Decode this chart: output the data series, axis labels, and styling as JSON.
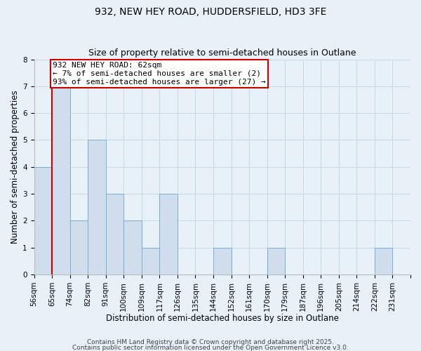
{
  "title": "932, NEW HEY ROAD, HUDDERSFIELD, HD3 3FE",
  "subtitle": "Size of property relative to semi-detached houses in Outlane",
  "xlabel": "Distribution of semi-detached houses by size in Outlane",
  "ylabel": "Number of semi-detached properties",
  "bin_labels": [
    "56sqm",
    "65sqm",
    "74sqm",
    "82sqm",
    "91sqm",
    "100sqm",
    "109sqm",
    "117sqm",
    "126sqm",
    "135sqm",
    "144sqm",
    "152sqm",
    "161sqm",
    "170sqm",
    "179sqm",
    "187sqm",
    "196sqm",
    "205sqm",
    "214sqm",
    "222sqm",
    "231sqm"
  ],
  "bin_values": [
    4,
    7,
    2,
    5,
    3,
    2,
    1,
    3,
    0,
    0,
    1,
    0,
    0,
    1,
    0,
    0,
    0,
    0,
    0,
    1,
    0
  ],
  "ylim": [
    0,
    8
  ],
  "yticks": [
    0,
    1,
    2,
    3,
    4,
    5,
    6,
    7,
    8
  ],
  "bar_color": "#cfdded",
  "bar_edge_color": "#7aadd4",
  "grid_color": "#c5d8ec",
  "background_color": "#e8f0f8",
  "annotation_box_text": "932 NEW HEY ROAD: 62sqm\n← 7% of semi-detached houses are smaller (2)\n93% of semi-detached houses are larger (27) →",
  "annotation_box_color": "#ffffff",
  "annotation_box_edge_color": "#cc0000",
  "property_line_color": "#cc0000",
  "footer_line1": "Contains HM Land Registry data © Crown copyright and database right 2025.",
  "footer_line2": "Contains public sector information licensed under the Open Government Licence v3.0.",
  "title_fontsize": 10,
  "subtitle_fontsize": 9,
  "xlabel_fontsize": 8.5,
  "ylabel_fontsize": 8.5,
  "tick_fontsize": 7.5,
  "annotation_fontsize": 8,
  "footer_fontsize": 6.5
}
